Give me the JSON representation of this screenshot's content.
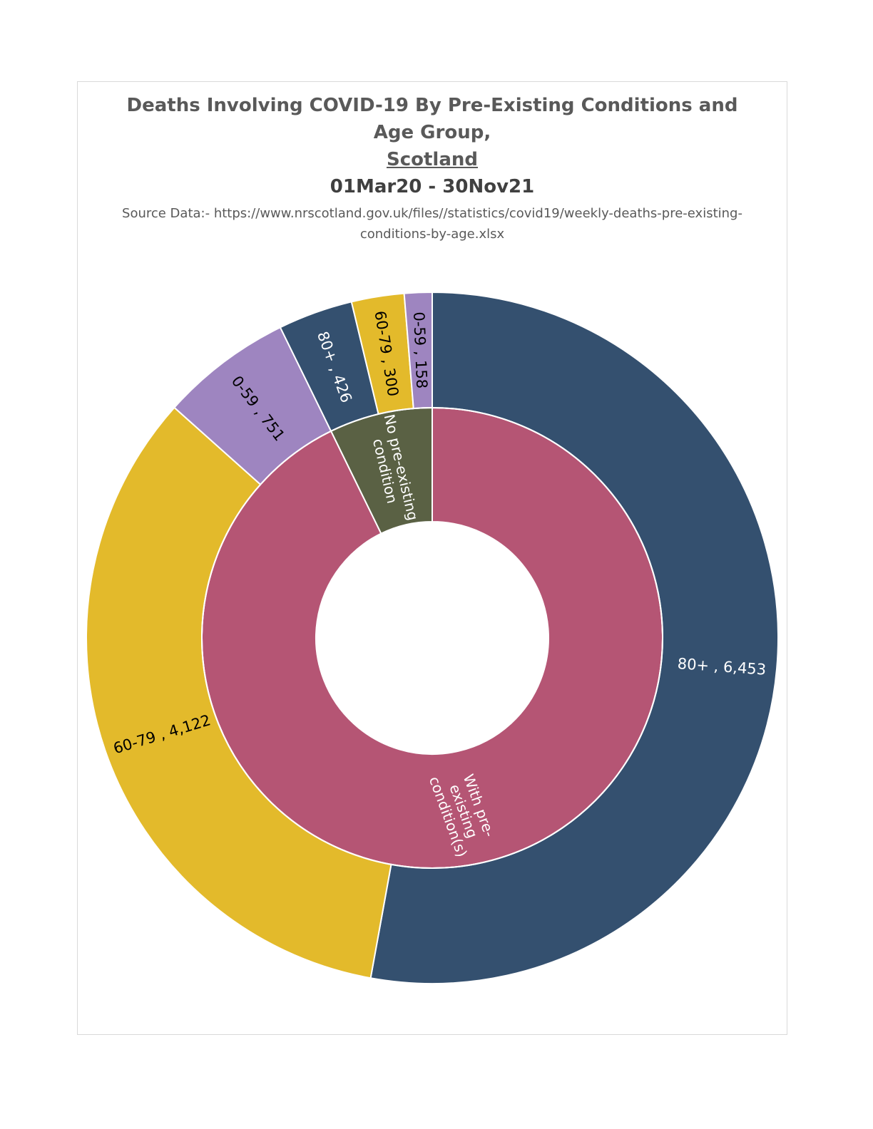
{
  "chart_data": {
    "type": "donut",
    "title": "Deaths Involving COVID-19 By Pre-Existing Conditions and Age Group,",
    "location": "Scotland",
    "period": "01Mar20 - 30Nov21",
    "source": "Source Data:- https://www.nrscotland.gov.uk/files//statistics/covid19/weekly-deaths-pre-existing-conditions-by-age.xlsx",
    "inner_ring": [
      {
        "label": "With pre-existing condition(s)",
        "value": 11326,
        "color": "#b55574"
      },
      {
        "label": "No pre-existing condition",
        "value": 884,
        "color": "#5a6144"
      }
    ],
    "outer_ring": [
      {
        "group": "With pre-existing condition(s)",
        "label": "80+",
        "value": 6453,
        "display": "80+ ,  6,453",
        "color": "#34506f",
        "text_color": "#ffffff"
      },
      {
        "group": "With pre-existing condition(s)",
        "label": "60-79",
        "value": 4122,
        "display": "60-79 ,  4,122",
        "color": "#e3ba2b",
        "text_color": "#000000"
      },
      {
        "group": "With pre-existing condition(s)",
        "label": "0-59",
        "value": 751,
        "display": "0-59 ,  751",
        "color": "#9e85c0",
        "text_color": "#000000"
      },
      {
        "group": "No pre-existing condition",
        "label": "80+",
        "value": 426,
        "display": "80+ ,  426",
        "color": "#34506f",
        "text_color": "#ffffff"
      },
      {
        "group": "No pre-existing condition",
        "label": "60-79",
        "value": 300,
        "display": "60-79 ,  300",
        "color": "#e3ba2b",
        "text_color": "#000000"
      },
      {
        "group": "No pre-existing condition",
        "label": "0-59",
        "value": 158,
        "display": "0-59 ,  158",
        "color": "#9e85c0",
        "text_color": "#000000"
      }
    ]
  }
}
